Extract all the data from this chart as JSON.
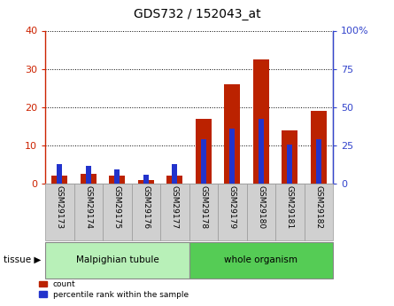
{
  "title": "GDS732 / 152043_at",
  "samples": [
    "GSM29173",
    "GSM29174",
    "GSM29175",
    "GSM29176",
    "GSM29177",
    "GSM29178",
    "GSM29179",
    "GSM29180",
    "GSM29181",
    "GSM29182"
  ],
  "count_values": [
    2.0,
    2.5,
    2.0,
    1.0,
    2.0,
    17.0,
    26.0,
    32.5,
    14.0,
    19.0
  ],
  "percentile_values": [
    12.5,
    11.5,
    9.0,
    6.0,
    12.5,
    29.0,
    36.0,
    42.5,
    25.5,
    29.0
  ],
  "tissues": [
    {
      "label": "Malpighian tubule",
      "color": "#b8f0b8",
      "start": 0,
      "end": 4
    },
    {
      "label": "whole organism",
      "color": "#55cc55",
      "start": 5,
      "end": 9
    }
  ],
  "ylim_left": [
    0,
    40
  ],
  "ylim_right": [
    0,
    100
  ],
  "yticks_left": [
    0,
    10,
    20,
    30,
    40
  ],
  "yticks_right": [
    0,
    25,
    50,
    75,
    100
  ],
  "ytick_labels_left": [
    "0",
    "10",
    "20",
    "30",
    "40"
  ],
  "ytick_labels_right": [
    "0",
    "25",
    "50",
    "75",
    "100%"
  ],
  "bar_color_red": "#bb2200",
  "bar_color_blue": "#2233cc",
  "bar_width": 0.55,
  "blue_bar_width": 0.18,
  "grid_color": "#000000",
  "tick_label_color_left": "#cc2200",
  "tick_label_color_right": "#3344cc",
  "legend_count_color": "#bb2200",
  "legend_pct_color": "#2233cc",
  "legend_count_label": "count",
  "legend_pct_label": "percentile rank within the sample",
  "tissue_label": "tissue",
  "xlabel_box_color": "#d0d0d0",
  "xlabel_box_border": "#999999"
}
